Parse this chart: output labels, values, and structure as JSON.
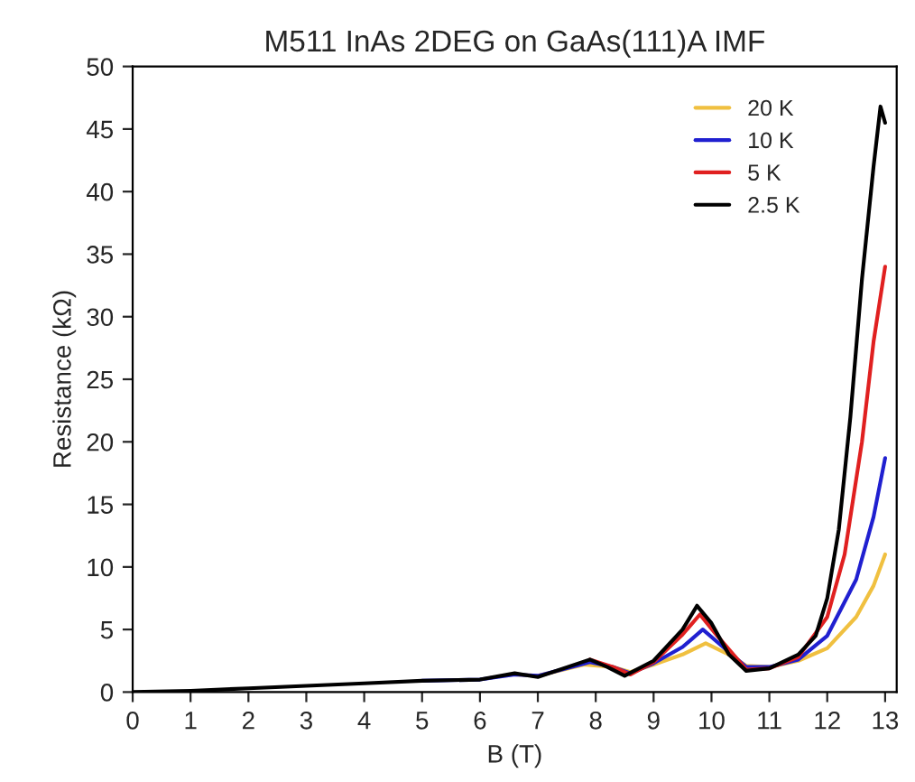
{
  "chart_data": {
    "type": "line",
    "title": "M511 InAs 2DEG on GaAs(111)A IMF",
    "xlabel": "B (T)",
    "ylabel": "Resistance (kΩ)",
    "xlim": [
      0,
      13.2
    ],
    "ylim": [
      0,
      50
    ],
    "xticks": [
      0,
      1,
      2,
      3,
      4,
      5,
      6,
      7,
      8,
      9,
      10,
      11,
      12,
      13
    ],
    "yticks": [
      0,
      5,
      10,
      15,
      20,
      25,
      30,
      35,
      40,
      45,
      50
    ],
    "grid": false,
    "legend": "top right",
    "marker": "none",
    "line_style": "solid",
    "series": [
      {
        "name": "20 K",
        "color": "#f0c040",
        "x": [
          6.6,
          7,
          7.8,
          8.3,
          8.6,
          9,
          9.5,
          9.9,
          10.3,
          10.6,
          11,
          11.5,
          12,
          12.5,
          12.8,
          13
        ],
        "values": [
          1.4,
          1.3,
          2.2,
          2.0,
          1.6,
          2.2,
          3.0,
          3.9,
          3.0,
          2.1,
          2.0,
          2.5,
          3.5,
          6.0,
          8.5,
          11.0
        ]
      },
      {
        "name": "10 K",
        "color": "#2020d0",
        "x": [
          5,
          6,
          6.6,
          7,
          7.9,
          8.3,
          8.6,
          9,
          9.5,
          9.85,
          10.2,
          10.6,
          11,
          11.5,
          12,
          12.5,
          12.8,
          13
        ],
        "values": [
          0.9,
          1.0,
          1.4,
          1.3,
          2.4,
          2.0,
          1.5,
          2.3,
          3.6,
          5.0,
          3.6,
          2.0,
          2.0,
          2.6,
          4.5,
          9.0,
          14.0,
          18.7
        ]
      },
      {
        "name": "5 K",
        "color": "#e02020",
        "x": [
          7.9,
          8.3,
          8.6,
          9,
          9.5,
          9.8,
          10.1,
          10.6,
          11,
          11.5,
          12,
          12.3,
          12.6,
          12.8,
          13
        ],
        "values": [
          2.6,
          2.0,
          1.4,
          2.4,
          4.6,
          6.2,
          4.5,
          1.8,
          1.9,
          2.8,
          6.0,
          11.0,
          20.0,
          28.0,
          34.0
        ]
      },
      {
        "name": "2.5 K",
        "color": "#000000",
        "x": [
          0,
          1,
          2,
          3,
          4,
          5,
          6,
          6.6,
          7,
          7.9,
          8.2,
          8.5,
          9,
          9.5,
          9.75,
          10,
          10.3,
          10.6,
          11,
          11.5,
          11.8,
          12,
          12.2,
          12.4,
          12.6,
          12.8,
          12.92,
          13
        ],
        "values": [
          0,
          0.1,
          0.3,
          0.5,
          0.7,
          0.9,
          1.0,
          1.5,
          1.2,
          2.6,
          2.0,
          1.3,
          2.5,
          5.0,
          6.9,
          5.5,
          3.0,
          1.7,
          1.9,
          3.0,
          4.5,
          7.5,
          13.0,
          22.0,
          33.0,
          42.0,
          46.8,
          45.5
        ]
      }
    ]
  }
}
